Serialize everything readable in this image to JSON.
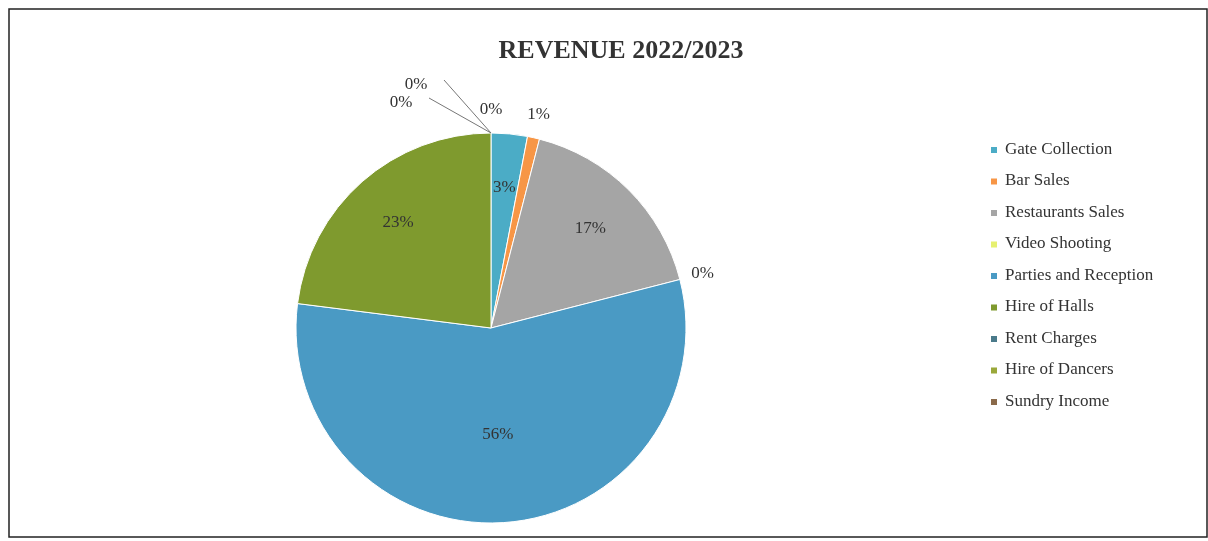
{
  "chart_data": {
    "type": "pie",
    "title": "REVENUE 2022/2023",
    "categories": [
      "Gate Collection",
      "Bar Sales",
      "Restaurants Sales",
      "Video Shooting",
      "Parties and Reception",
      "Hire of Halls",
      "Rent Charges",
      "Hire of Dancers",
      "Sundry Income"
    ],
    "values": [
      3,
      1,
      17,
      0,
      56,
      23,
      0,
      0,
      0
    ],
    "colors": [
      "#4bacc6",
      "#f79646",
      "#a5a5a5",
      "#e6f070",
      "#4a9ac4",
      "#7f9a2e",
      "#4a7a8a",
      "#9aa83a",
      "#8a6a4a"
    ],
    "value_labels": [
      "3%",
      "1%",
      "17%",
      "0%",
      "56%",
      "23%",
      "0%",
      "0%",
      "0%"
    ],
    "legend": "right"
  }
}
